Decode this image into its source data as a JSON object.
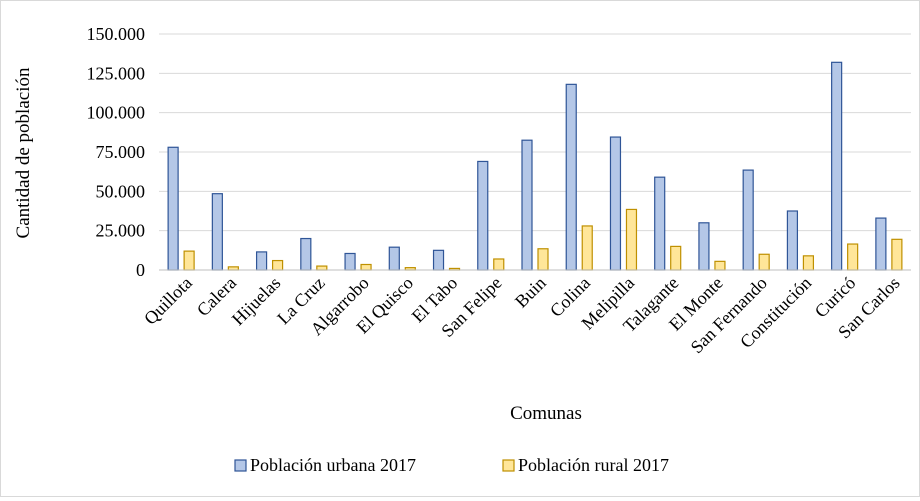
{
  "chart_data": {
    "type": "bar",
    "title": "",
    "xlabel": "Comunas",
    "ylabel": "Cantidad de población",
    "ylim": [
      0,
      150000
    ],
    "yticks": [
      0,
      25000,
      50000,
      75000,
      100000,
      125000,
      150000
    ],
    "ytick_labels": [
      "0",
      "25.000",
      "50.000",
      "75.000",
      "100.000",
      "125.000",
      "150.000"
    ],
    "grid": true,
    "legend_position": "bottom",
    "categories": [
      "Quillota",
      "Calera",
      "Hijuelas",
      "La Cruz",
      "Algarrobo",
      "El Quisco",
      "El Tabo",
      "San Felipe",
      "Buin",
      "Colina",
      "Melipilla",
      "Talagante",
      "El Monte",
      "San Fernando",
      "Constitución",
      "Curicó",
      "San Carlos"
    ],
    "series": [
      {
        "name": "Población urbana 2017",
        "fill": "#b4c7e7",
        "stroke": "#2f5597",
        "values": [
          78000,
          48500,
          11500,
          20000,
          10500,
          14500,
          12500,
          69000,
          82500,
          118000,
          84500,
          59000,
          30000,
          63500,
          37500,
          132000,
          33000
        ]
      },
      {
        "name": "Población rural 2017",
        "fill": "#ffe699",
        "stroke": "#bf9000",
        "values": [
          12000,
          2000,
          6000,
          2500,
          3500,
          1500,
          1000,
          7000,
          13500,
          28000,
          38500,
          15000,
          5500,
          10000,
          9000,
          16500,
          19500
        ]
      }
    ]
  }
}
